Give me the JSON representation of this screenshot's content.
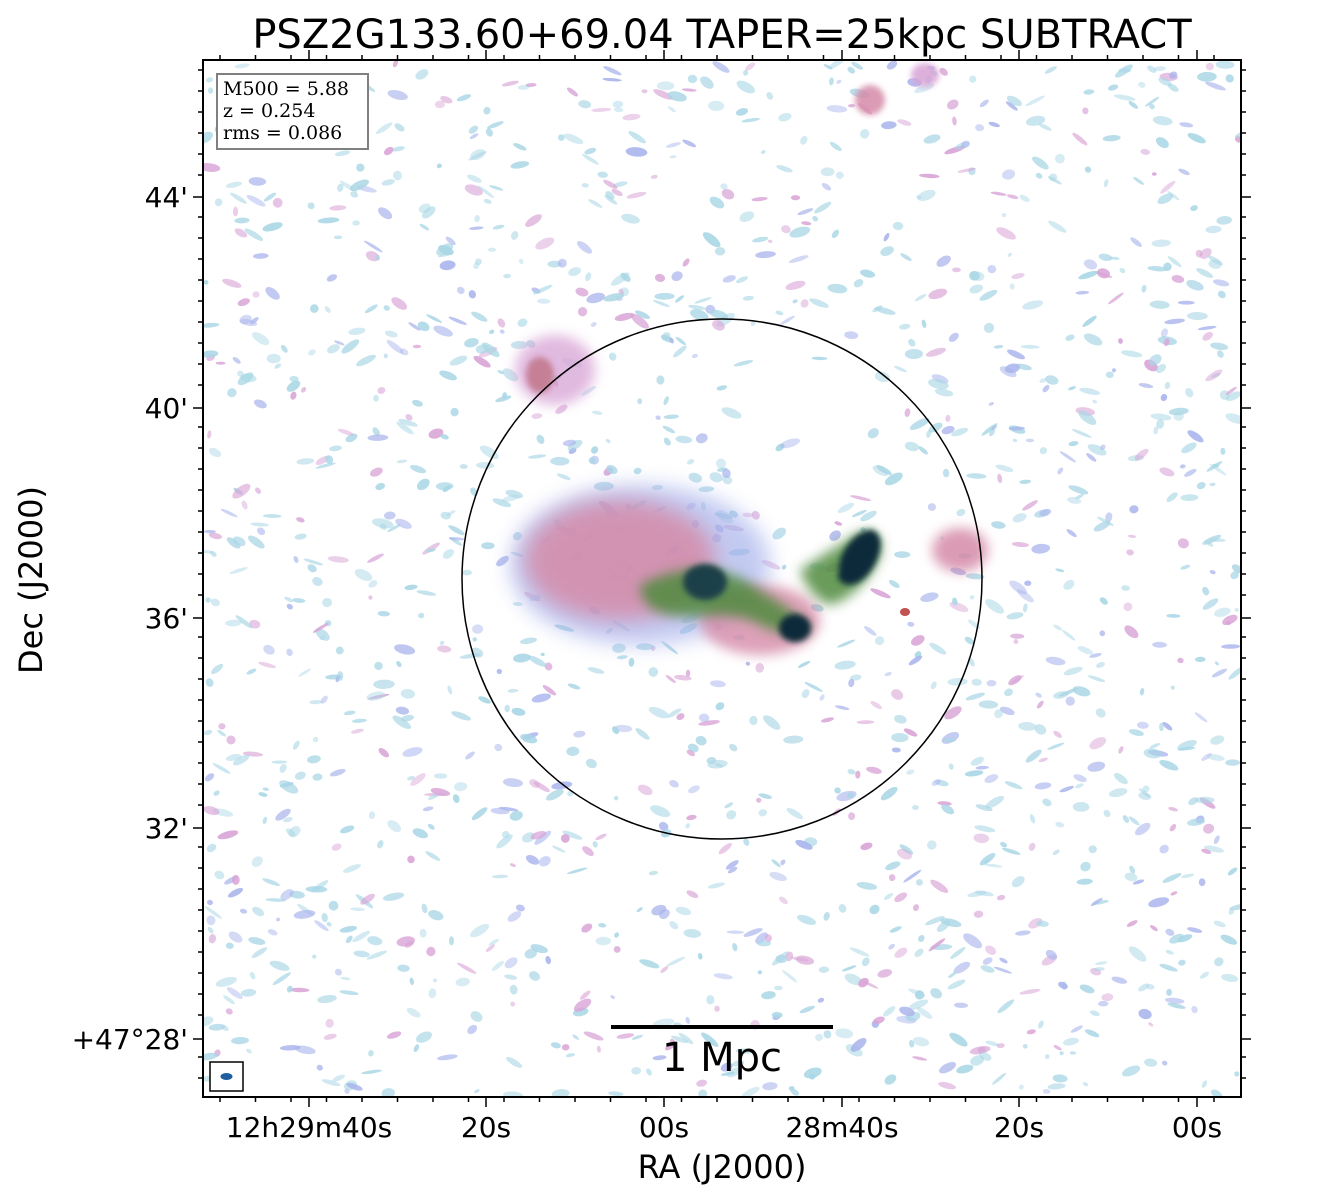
{
  "figure": {
    "title": "PSZ2G133.60+69.04 TAPER=25kpc SUBTRACT",
    "xlabel": "RA (J2000)",
    "ylabel": "Dec (J2000)",
    "x_ticks": [
      "12h29m40s",
      "20s",
      "00s",
      "28m40s",
      "20s",
      "00s"
    ],
    "y_ticks": [
      "44'",
      "40'",
      "36'",
      "32'",
      "+47°28'"
    ],
    "info": {
      "m500": "M500 = 5.88",
      "z": "z = 0.254",
      "rms": "rms = 0.086"
    },
    "scalebar_label": "1 Mpc",
    "colors": {
      "background": "#ffffff",
      "noise_light": "#a9d6e5",
      "noise_mid": "#a9b4ec",
      "noise_pink": "#d8a3d6",
      "halo_pink": "#d58aa8",
      "emission_green": "#4f8a3c",
      "emission_dark": "#0a2a3a",
      "beam": "#1f5fa0"
    }
  }
}
